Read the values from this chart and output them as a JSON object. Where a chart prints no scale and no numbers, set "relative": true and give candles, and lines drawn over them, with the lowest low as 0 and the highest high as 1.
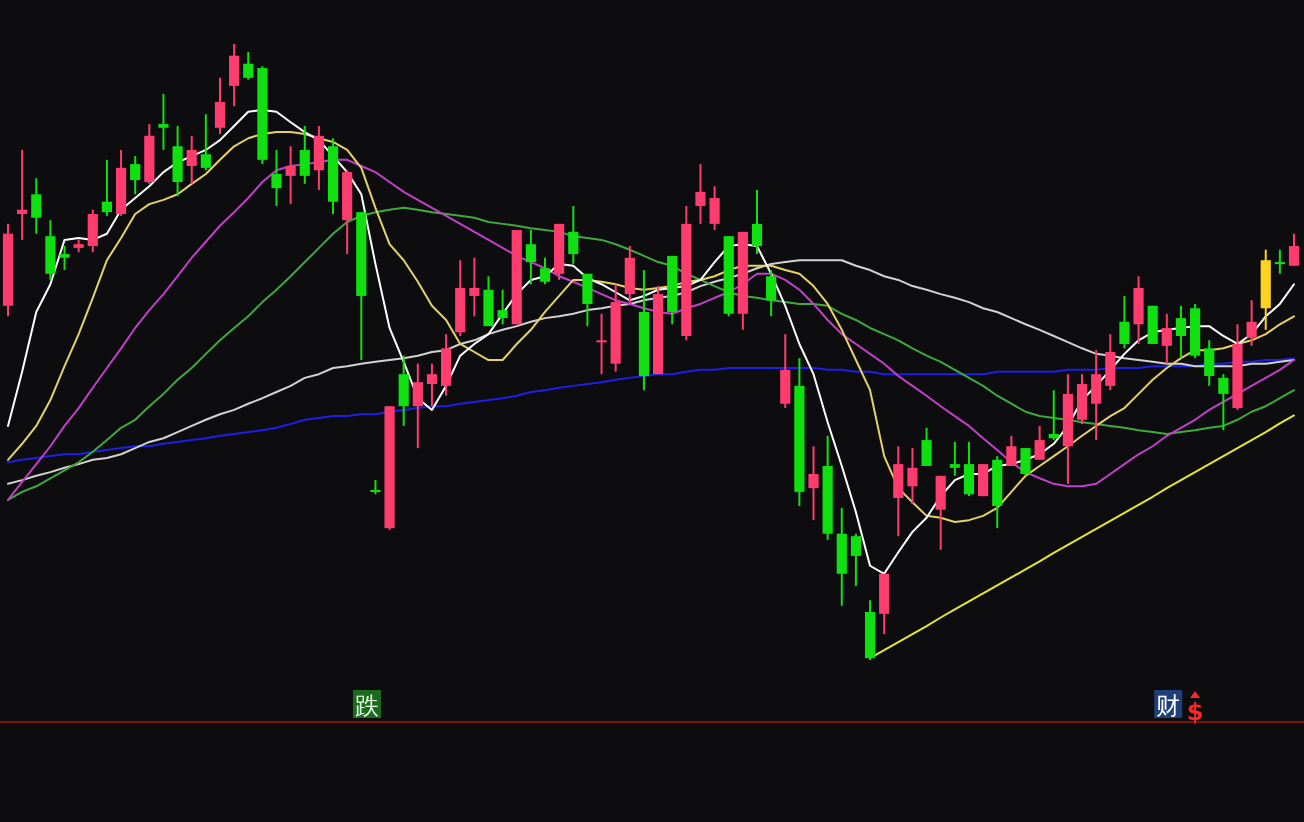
{
  "chart_data": {
    "type": "candlestick",
    "relative": true,
    "categories": [
      null,
      null,
      null,
      null,
      null,
      null,
      null,
      null,
      null,
      null,
      null,
      null,
      null,
      null,
      null,
      null,
      null,
      null,
      null,
      null,
      null,
      null,
      null,
      null,
      null,
      null,
      null,
      null,
      null,
      null,
      null,
      null,
      null,
      null,
      null,
      null,
      null,
      null,
      null,
      null,
      null,
      null,
      null,
      null,
      null,
      null,
      null,
      null,
      null,
      null,
      null,
      null,
      null,
      null,
      null,
      null,
      null,
      null,
      null,
      null,
      null,
      null,
      null,
      null,
      null,
      null,
      null,
      null,
      null,
      null,
      null,
      null,
      null,
      null,
      null,
      null,
      null,
      null,
      null,
      null,
      null,
      null,
      null,
      null,
      null,
      null,
      null,
      null,
      null,
      null,
      null,
      null
    ],
    "ohlc": [
      [
        0.575,
        0.708,
        0.558,
        0.692
      ],
      [
        0.724,
        0.828,
        0.682,
        0.731
      ],
      [
        0.756,
        0.782,
        0.692,
        0.718
      ],
      [
        0.688,
        0.714,
        0.617,
        0.627
      ],
      [
        0.659,
        0.672,
        0.633,
        0.653
      ],
      [
        0.669,
        0.682,
        0.662,
        0.675
      ],
      [
        0.672,
        0.731,
        0.662,
        0.724
      ],
      [
        0.744,
        0.812,
        0.721,
        0.727
      ],
      [
        0.724,
        0.828,
        0.721,
        0.799
      ],
      [
        0.805,
        0.818,
        0.756,
        0.779
      ],
      [
        0.776,
        0.87,
        0.773,
        0.851
      ],
      [
        0.87,
        0.919,
        0.828,
        0.864
      ],
      [
        0.834,
        0.867,
        0.753,
        0.776
      ],
      [
        0.802,
        0.851,
        0.773,
        0.828
      ],
      [
        0.821,
        0.886,
        0.795,
        0.799
      ],
      [
        0.864,
        0.945,
        0.854,
        0.906
      ],
      [
        0.932,
        1,
        0.899,
        0.981
      ],
      [
        0.968,
        0.987,
        0.942,
        0.945
      ],
      [
        0.961,
        0.964,
        0.805,
        0.812
      ],
      [
        0.789,
        0.828,
        0.737,
        0.766
      ],
      [
        0.786,
        0.834,
        0.74,
        0.802
      ],
      [
        0.828,
        0.867,
        0.773,
        0.786
      ],
      [
        0.795,
        0.867,
        0.763,
        0.851
      ],
      [
        0.834,
        0.847,
        0.724,
        0.744
      ],
      [
        0.714,
        0.795,
        0.659,
        0.792
      ],
      [
        0.727,
        0.727,
        0.487,
        0.591
      ],
      [
        0.276,
        0.292,
        0.269,
        0.273
      ],
      [
        0.214,
        0.412,
        0.211,
        0.412
      ],
      [
        0.464,
        0.494,
        0.38,
        0.412
      ],
      [
        0.412,
        0.481,
        0.344,
        0.451
      ],
      [
        0.448,
        0.481,
        0.412,
        0.464
      ],
      [
        0.445,
        0.529,
        0.429,
        0.506
      ],
      [
        0.532,
        0.649,
        0.526,
        0.604
      ],
      [
        0.591,
        0.653,
        0.558,
        0.604
      ],
      [
        0.601,
        0.623,
        0.542,
        0.542
      ],
      [
        0.568,
        0.601,
        0.545,
        0.555
      ],
      [
        0.545,
        0.698,
        0.545,
        0.698
      ],
      [
        0.675,
        0.698,
        0.61,
        0.646
      ],
      [
        0.636,
        0.653,
        0.61,
        0.614
      ],
      [
        0.627,
        0.708,
        0.617,
        0.708
      ],
      [
        0.695,
        0.737,
        0.643,
        0.659
      ],
      [
        0.627,
        0.627,
        0.542,
        0.578
      ],
      [
        0.516,
        0.562,
        0.464,
        0.519
      ],
      [
        0.481,
        0.61,
        0.468,
        0.581
      ],
      [
        0.594,
        0.672,
        0.578,
        0.653
      ],
      [
        0.565,
        0.633,
        0.438,
        0.461
      ],
      [
        0.464,
        0.607,
        0.464,
        0.594
      ],
      [
        0.656,
        0.656,
        0.545,
        0.565
      ],
      [
        0.526,
        0.737,
        0.519,
        0.708
      ],
      [
        0.737,
        0.805,
        0.708,
        0.76
      ],
      [
        0.708,
        0.769,
        0.698,
        0.75
      ],
      [
        0.688,
        0.688,
        0.558,
        0.562
      ],
      [
        0.562,
        0.695,
        0.536,
        0.695
      ],
      [
        0.708,
        0.763,
        0.659,
        0.672
      ],
      [
        0.623,
        0.633,
        0.558,
        0.584
      ],
      [
        0.416,
        0.529,
        0.409,
        0.471
      ],
      [
        0.445,
        0.49,
        0.25,
        0.273
      ],
      [
        0.279,
        0.347,
        0.227,
        0.302
      ],
      [
        0.315,
        0.364,
        0.195,
        0.205
      ],
      [
        0.205,
        0.247,
        0.088,
        0.14
      ],
      [
        0.201,
        0.205,
        0.12,
        0.169
      ],
      [
        0.078,
        0.097,
        0,
        0.003
      ],
      [
        0.075,
        0.14,
        0.042,
        0.14
      ],
      [
        0.263,
        0.347,
        0.201,
        0.318
      ],
      [
        0.282,
        0.344,
        0.253,
        0.312
      ],
      [
        0.357,
        0.377,
        0.315,
        0.315
      ],
      [
        0.244,
        0.299,
        0.179,
        0.299
      ],
      [
        0.318,
        0.354,
        0.299,
        0.312
      ],
      [
        0.318,
        0.354,
        0.266,
        0.269
      ],
      [
        0.266,
        0.318,
        0.266,
        0.318
      ],
      [
        0.325,
        0.331,
        0.214,
        0.25
      ],
      [
        0.315,
        0.364,
        0.315,
        0.347
      ],
      [
        0.344,
        0.344,
        0.299,
        0.302
      ],
      [
        0.325,
        0.38,
        0.325,
        0.357
      ],
      [
        0.367,
        0.438,
        0.357,
        0.36
      ],
      [
        0.347,
        0.464,
        0.286,
        0.432
      ],
      [
        0.39,
        0.464,
        0.383,
        0.448
      ],
      [
        0.416,
        0.503,
        0.357,
        0.464
      ],
      [
        0.445,
        0.529,
        0.438,
        0.5
      ],
      [
        0.549,
        0.591,
        0.506,
        0.513
      ],
      [
        0.545,
        0.623,
        0.513,
        0.604
      ],
      [
        0.575,
        0.575,
        0.513,
        0.513
      ],
      [
        0.51,
        0.562,
        0.481,
        0.539
      ],
      [
        0.555,
        0.575,
        0.49,
        0.526
      ],
      [
        0.571,
        0.578,
        0.49,
        0.494
      ],
      [
        0.506,
        0.519,
        0.445,
        0.461
      ],
      [
        0.458,
        0.464,
        0.373,
        0.432
      ],
      [
        0.409,
        0.545,
        0.406,
        0.513
      ],
      [
        0.523,
        0.584,
        0.51,
        0.549
      ],
      [
        0.571,
        0.666,
        0.536,
        0.649
      ],
      [
        0.646,
        0.666,
        0.627,
        0.643
      ],
      [
        0.64,
        0.692,
        0.64,
        0.672
      ]
    ],
    "colors": [
      "#ff3c6e",
      "#ff3c6e",
      "#10e010",
      "#10e010",
      "#10e010",
      "#ff3c6e",
      "#ff3c6e",
      "#10e010",
      "#ff3c6e",
      "#10e010",
      "#ff3c6e",
      "#10e010",
      "#10e010",
      "#ff3c6e",
      "#10e010",
      "#ff3c6e",
      "#ff3c6e",
      "#10e010",
      "#10e010",
      "#10e010",
      "#ff3c6e",
      "#10e010",
      "#ff3c6e",
      "#10e010",
      "#ff3c6e",
      "#10e010",
      "#10e010",
      "#ff3c6e",
      "#10e010",
      "#ff3c6e",
      "#ff3c6e",
      "#ff3c6e",
      "#ff3c6e",
      "#ff3c6e",
      "#10e010",
      "#10e010",
      "#ff3c6e",
      "#10e010",
      "#10e010",
      "#ff3c6e",
      "#10e010",
      "#10e010",
      "#ff3c6e",
      "#ff3c6e",
      "#ff3c6e",
      "#10e010",
      "#ff3c6e",
      "#10e010",
      "#ff3c6e",
      "#ff3c6e",
      "#ff3c6e",
      "#10e010",
      "#ff3c6e",
      "#10e010",
      "#10e010",
      "#ff3c6e",
      "#10e010",
      "#ff3c6e",
      "#10e010",
      "#10e010",
      "#10e010",
      "#10e010",
      "#ff3c6e",
      "#ff3c6e",
      "#ff3c6e",
      "#10e010",
      "#ff3c6e",
      "#10e010",
      "#10e010",
      "#ff3c6e",
      "#10e010",
      "#ff3c6e",
      "#10e010",
      "#ff3c6e",
      "#10e010",
      "#ff3c6e",
      "#ff3c6e",
      "#ff3c6e",
      "#ff3c6e",
      "#10e010",
      "#ff3c6e",
      "#10e010",
      "#ff3c6e",
      "#10e010",
      "#10e010",
      "#10e010",
      "#10e010",
      "#ff3c6e",
      "#ff3c6e",
      "#ffd21e",
      "#10e010",
      "#ff3c6e"
    ],
    "series": [
      {
        "type": "line",
        "color": "#1e1ee6",
        "values": [
          0.321,
          0.325,
          0.328,
          0.331,
          0.334,
          0.334,
          0.338,
          0.341,
          0.344,
          0.347,
          0.347,
          0.351,
          0.354,
          0.357,
          0.36,
          0.364,
          0.367,
          0.37,
          0.373,
          0.377,
          0.383,
          0.39,
          0.393,
          0.396,
          0.396,
          0.399,
          0.399,
          0.403,
          0.406,
          0.409,
          0.412,
          0.412,
          0.416,
          0.419,
          0.422,
          0.425,
          0.429,
          0.435,
          0.438,
          0.442,
          0.445,
          0.448,
          0.451,
          0.455,
          0.458,
          0.461,
          0.464,
          0.464,
          0.468,
          0.471,
          0.471,
          0.474,
          0.474,
          0.474,
          0.474,
          0.474,
          0.474,
          0.474,
          0.471,
          0.471,
          0.468,
          0.468,
          0.464,
          0.464,
          0.464,
          0.464,
          0.464,
          0.464,
          0.464,
          0.464,
          0.468,
          0.468,
          0.468,
          0.468,
          0.468,
          0.471,
          0.471,
          0.471,
          0.474,
          0.474,
          0.474,
          0.477,
          0.477,
          0.477,
          0.477,
          0.481,
          0.481,
          0.484,
          0.484,
          0.487,
          0.487,
          0.49
        ]
      },
      {
        "type": "line",
        "color": "#d2d2d2",
        "values": [
          0.286,
          0.292,
          0.299,
          0.305,
          0.312,
          0.318,
          0.325,
          0.328,
          0.334,
          0.344,
          0.354,
          0.36,
          0.37,
          0.38,
          0.39,
          0.399,
          0.406,
          0.416,
          0.425,
          0.435,
          0.445,
          0.458,
          0.464,
          0.474,
          0.477,
          0.481,
          0.484,
          0.487,
          0.49,
          0.494,
          0.5,
          0.503,
          0.513,
          0.519,
          0.529,
          0.536,
          0.542,
          0.549,
          0.555,
          0.558,
          0.562,
          0.568,
          0.571,
          0.575,
          0.578,
          0.584,
          0.588,
          0.591,
          0.597,
          0.607,
          0.614,
          0.62,
          0.627,
          0.636,
          0.643,
          0.646,
          0.649,
          0.649,
          0.649,
          0.649,
          0.64,
          0.633,
          0.623,
          0.617,
          0.607,
          0.601,
          0.594,
          0.588,
          0.581,
          0.571,
          0.565,
          0.555,
          0.545,
          0.536,
          0.526,
          0.516,
          0.506,
          0.497,
          0.494,
          0.49,
          0.487,
          0.484,
          0.481,
          0.481,
          0.477,
          0.477,
          0.477,
          0.477,
          0.481,
          0.481,
          0.484,
          0.487
        ]
      },
      {
        "type": "line",
        "color": "#3fa83f",
        "values": [
          0.26,
          0.273,
          0.282,
          0.295,
          0.308,
          0.321,
          0.338,
          0.357,
          0.377,
          0.39,
          0.412,
          0.432,
          0.455,
          0.474,
          0.497,
          0.519,
          0.539,
          0.558,
          0.581,
          0.601,
          0.623,
          0.646,
          0.669,
          0.692,
          0.711,
          0.721,
          0.727,
          0.731,
          0.734,
          0.731,
          0.727,
          0.724,
          0.721,
          0.718,
          0.711,
          0.708,
          0.705,
          0.701,
          0.698,
          0.695,
          0.688,
          0.685,
          0.682,
          0.675,
          0.666,
          0.656,
          0.646,
          0.64,
          0.627,
          0.617,
          0.607,
          0.597,
          0.591,
          0.588,
          0.584,
          0.581,
          0.578,
          0.578,
          0.575,
          0.562,
          0.552,
          0.539,
          0.529,
          0.519,
          0.506,
          0.494,
          0.484,
          0.471,
          0.458,
          0.445,
          0.429,
          0.416,
          0.403,
          0.396,
          0.393,
          0.39,
          0.386,
          0.383,
          0.38,
          0.377,
          0.373,
          0.37,
          0.367,
          0.37,
          0.373,
          0.377,
          0.38,
          0.39,
          0.403,
          0.412,
          0.425,
          0.438
        ]
      },
      {
        "type": "line",
        "color": "#c040c8",
        "values": [
          0.26,
          0.289,
          0.318,
          0.347,
          0.38,
          0.409,
          0.442,
          0.474,
          0.506,
          0.539,
          0.568,
          0.594,
          0.623,
          0.653,
          0.679,
          0.705,
          0.727,
          0.75,
          0.776,
          0.795,
          0.802,
          0.805,
          0.808,
          0.812,
          0.812,
          0.802,
          0.792,
          0.776,
          0.76,
          0.747,
          0.734,
          0.721,
          0.708,
          0.695,
          0.682,
          0.669,
          0.656,
          0.646,
          0.636,
          0.623,
          0.614,
          0.604,
          0.594,
          0.584,
          0.578,
          0.571,
          0.565,
          0.562,
          0.571,
          0.578,
          0.588,
          0.597,
          0.61,
          0.627,
          0.627,
          0.617,
          0.601,
          0.578,
          0.552,
          0.529,
          0.513,
          0.497,
          0.481,
          0.461,
          0.445,
          0.429,
          0.412,
          0.396,
          0.38,
          0.36,
          0.341,
          0.321,
          0.305,
          0.295,
          0.286,
          0.282,
          0.282,
          0.286,
          0.302,
          0.318,
          0.334,
          0.347,
          0.364,
          0.377,
          0.39,
          0.406,
          0.419,
          0.432,
          0.445,
          0.458,
          0.471,
          0.487
        ]
      },
      {
        "type": "line",
        "color": "#e6d264",
        "values": [
          0.325,
          0.351,
          0.38,
          0.422,
          0.477,
          0.529,
          0.588,
          0.649,
          0.685,
          0.724,
          0.74,
          0.747,
          0.756,
          0.773,
          0.789,
          0.812,
          0.834,
          0.847,
          0.854,
          0.857,
          0.857,
          0.854,
          0.847,
          0.841,
          0.828,
          0.799,
          0.734,
          0.675,
          0.649,
          0.614,
          0.575,
          0.552,
          0.513,
          0.5,
          0.487,
          0.487,
          0.513,
          0.536,
          0.565,
          0.591,
          0.617,
          0.617,
          0.614,
          0.61,
          0.604,
          0.601,
          0.604,
          0.607,
          0.614,
          0.617,
          0.623,
          0.633,
          0.64,
          0.64,
          0.64,
          0.633,
          0.627,
          0.607,
          0.578,
          0.536,
          0.487,
          0.438,
          0.331,
          0.279,
          0.256,
          0.234,
          0.231,
          0.224,
          0.227,
          0.234,
          0.247,
          0.273,
          0.299,
          0.315,
          0.331,
          0.347,
          0.364,
          0.38,
          0.396,
          0.409,
          0.432,
          0.455,
          0.474,
          0.49,
          0.503,
          0.503,
          0.506,
          0.513,
          0.519,
          0.529,
          0.545,
          0.558
        ]
      },
      {
        "type": "line",
        "color": "#ffffff",
        "values": [
          0.38,
          0.468,
          0.565,
          0.61,
          0.682,
          0.685,
          0.682,
          0.692,
          0.731,
          0.75,
          0.769,
          0.792,
          0.808,
          0.818,
          0.828,
          0.844,
          0.867,
          0.89,
          0.893,
          0.89,
          0.873,
          0.857,
          0.844,
          0.818,
          0.792,
          0.756,
          0.643,
          0.539,
          0.484,
          0.425,
          0.406,
          0.445,
          0.494,
          0.513,
          0.529,
          0.562,
          0.594,
          0.617,
          0.623,
          0.643,
          0.64,
          0.62,
          0.61,
          0.597,
          0.584,
          0.591,
          0.601,
          0.604,
          0.607,
          0.617,
          0.646,
          0.672,
          0.675,
          0.672,
          0.627,
          0.575,
          0.513,
          0.464,
          0.386,
          0.315,
          0.24,
          0.153,
          0.14,
          0.175,
          0.208,
          0.231,
          0.266,
          0.292,
          0.302,
          0.302,
          0.315,
          0.318,
          0.325,
          0.334,
          0.351,
          0.38,
          0.422,
          0.445,
          0.471,
          0.497,
          0.519,
          0.532,
          0.536,
          0.539,
          0.542,
          0.542,
          0.526,
          0.513,
          0.529,
          0.558,
          0.578,
          0.61
        ]
      },
      {
        "type": "line",
        "color": "#e6e632",
        "values": [
          null,
          null,
          null,
          null,
          null,
          null,
          null,
          null,
          null,
          null,
          null,
          null,
          null,
          null,
          null,
          null,
          null,
          null,
          null,
          null,
          null,
          null,
          null,
          null,
          null,
          null,
          null,
          null,
          null,
          null,
          null,
          null,
          null,
          null,
          null,
          null,
          null,
          null,
          null,
          null,
          null,
          null,
          null,
          null,
          null,
          null,
          null,
          null,
          null,
          null,
          null,
          null,
          null,
          null,
          null,
          null,
          null,
          null,
          null,
          null,
          null,
          0.003,
          0.016,
          0.029,
          0.042,
          0.055,
          0.069,
          0.082,
          0.095,
          0.108,
          0.121,
          0.134,
          0.147,
          0.16,
          0.174,
          0.187,
          0.2,
          0.213,
          0.226,
          0.239,
          0.252,
          0.265,
          0.279,
          0.292,
          0.305,
          0.318,
          0.331,
          0.344,
          0.357,
          0.37,
          0.384,
          0.397
        ]
      }
    ],
    "annotations": [
      "跌",
      "财",
      "$"
    ]
  }
}
